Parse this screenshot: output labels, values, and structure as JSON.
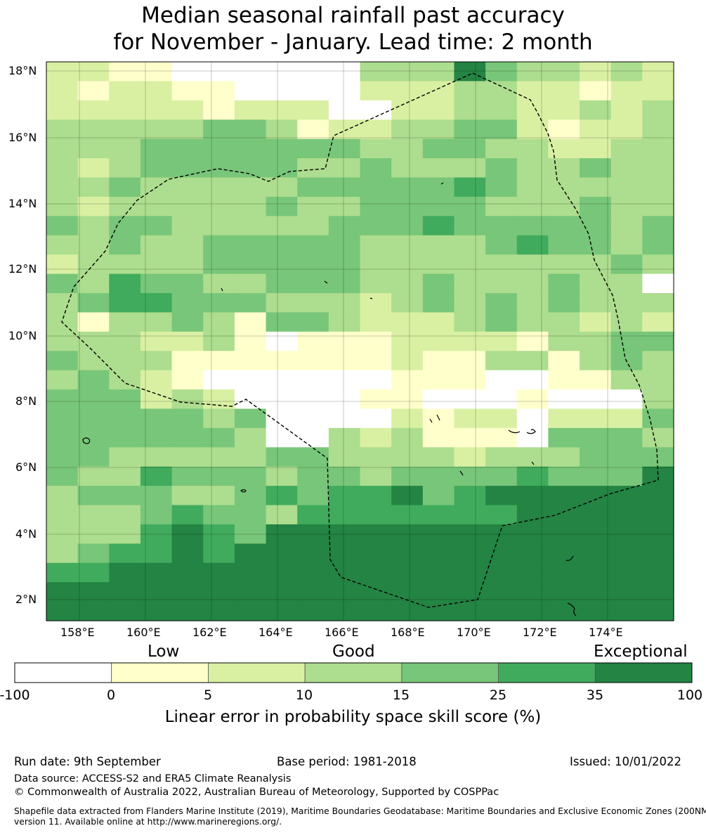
{
  "title": {
    "line1": "Median seasonal rainfall past accuracy",
    "line2": "for November - January. Lead time: 2 month"
  },
  "map": {
    "lat_labels": [
      "18°N",
      "16°N",
      "14°N",
      "12°N",
      "10°N",
      "8°N",
      "6°N",
      "4°N",
      "2°N"
    ],
    "lon_labels": [
      "158°E",
      "160°E",
      "162°E",
      "164°E",
      "166°E",
      "168°E",
      "170°E",
      "172°E",
      "174°E"
    ],
    "zone_boundary": "dashed-black",
    "grid": "on",
    "skill_grid_rows_north_to_south": [
      "22110000003336433232",
      "21221100002223322122",
      "22222122200223322323",
      "33333443122334421223",
      "33344444443344332233",
      "32344444334333433433",
      "33433333444445433333",
      "32333334334444333433",
      "43443333344454444434",
      "33433444443333454434",
      "23333444443333333343",
      "43544334443343334330",
      "34554443332343434333",
      "31334314432223433232",
      "33322310111222213344",
      "43331111111211331343",
      "34321000000111001133",
      "44423200001100010003",
      "44444340000212202224",
      "44444430032311104443",
      "44333334433332333444",
      "43354443443444454446",
      "34443345455645666666",
      "33345443555555566666",
      "33356546666666666666",
      "34556566666666666666",
      "55666666666666666666",
      "66666666666666666666",
      "66666666666666666666"
    ]
  },
  "colorbar": {
    "category_labels": [
      "Low",
      "Good",
      "Exceptional"
    ],
    "bounds": [
      "-100",
      "0",
      "5",
      "10",
      "15",
      "25",
      "35",
      "100"
    ],
    "colors": [
      "#ffffff",
      "#ffffcc",
      "#d9f0a3",
      "#addd8e",
      "#78c679",
      "#41ab5d",
      "#238443"
    ],
    "label": "Linear error in probability space skill score (%)"
  },
  "footer": {
    "run_date": "Run date: 9th September",
    "base_period": "Base period: 1981-2018",
    "issued": "Issued: 10/01/2022",
    "data_source": "Data source: ACCESS-S2 and ERA5 Climate Reanalysis",
    "copyright": "© Commonwealth of Australia 2022, Australian Bureau of Meteorology, Supported by COSPPac",
    "shapefile_line1": "Shapefile data extracted from Flanders Marine Institute (2019), Maritime Boundaries Geodatabase: Maritime Boundaries and Exclusive Economic Zones (200NM),",
    "shapefile_line2": "version 11. Available online at http://www.marineregions.org/."
  }
}
